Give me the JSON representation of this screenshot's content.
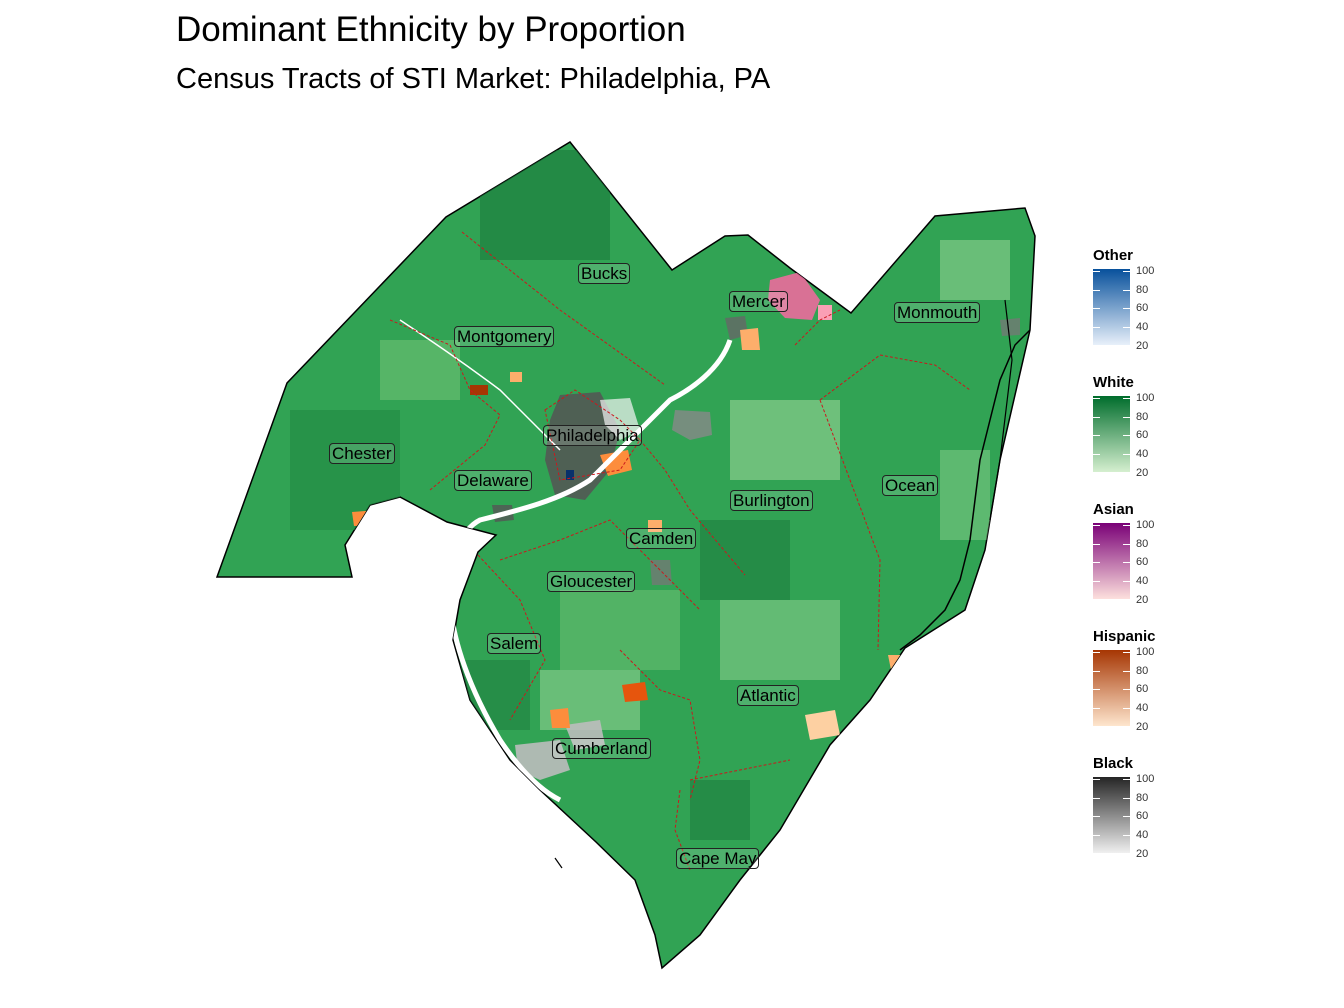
{
  "title": "Dominant Ethnicity by Proportion",
  "subtitle": "Census Tracts of STI Market: Philadelphia, PA",
  "counties": {
    "bucks": "Bucks",
    "mercer": "Mercer",
    "monmouth": "Monmouth",
    "montgomery": "Montgomery",
    "philadelphia": "Philadelphia",
    "chester": "Chester",
    "delaware": "Delaware",
    "burlington": "Burlington",
    "ocean": "Ocean",
    "camden": "Camden",
    "gloucester": "Gloucester",
    "salem": "Salem",
    "atlantic": "Atlantic",
    "cumberland": "Cumberland",
    "cape_may": "Cape May"
  },
  "legend": [
    {
      "key": "other",
      "title": "Other",
      "low": "#e8f0fa",
      "high": "#08519c",
      "ticks": [
        "100",
        "80",
        "60",
        "40",
        "20"
      ]
    },
    {
      "key": "white",
      "title": "White",
      "low": "#d5efcf",
      "high": "#006d2c",
      "ticks": [
        "100",
        "80",
        "60",
        "40",
        "20"
      ]
    },
    {
      "key": "asian",
      "title": "Asian",
      "low": "#fde0dd",
      "high": "#7a0177",
      "ticks": [
        "100",
        "80",
        "60",
        "40",
        "20"
      ]
    },
    {
      "key": "hispanic",
      "title": "Hispanic",
      "low": "#fee6ce",
      "high": "#a63603",
      "ticks": [
        "100",
        "80",
        "60",
        "40",
        "20"
      ]
    },
    {
      "key": "black",
      "title": "Black",
      "low": "#f0f0f0",
      "high": "#252525",
      "ticks": [
        "100",
        "80",
        "60",
        "40",
        "20"
      ]
    }
  ],
  "colors": {
    "land_base": "#31a354",
    "land_light": "#74c476",
    "land_dark": "#1b7a3c",
    "county_border": "#cb181d",
    "water": "#ffffff"
  }
}
